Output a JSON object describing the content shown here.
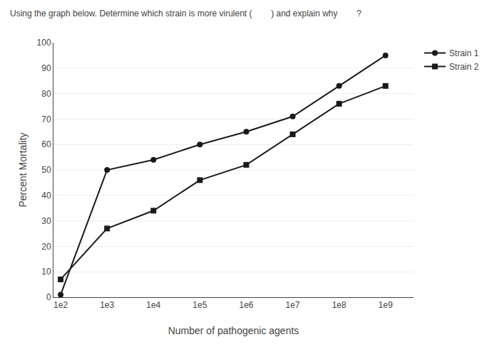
{
  "chart_data": {
    "type": "line",
    "title": "Using the graph below. Determine which strain is more virulent (        ) and explain why        ?",
    "x_label": "Number of pathogenic agents",
    "y_label": "Percent Mortality",
    "x": [
      100,
      1000,
      10000,
      100000,
      1000000,
      10000000,
      100000000,
      1000000000
    ],
    "series": [
      {
        "name": "Strain 1",
        "color": "#1a1a1a",
        "marker": "circle",
        "values": [
          1,
          50,
          54,
          60,
          65,
          71,
          83,
          95
        ]
      },
      {
        "name": "Strain 2",
        "color": "#1a1a1a",
        "marker": "square",
        "values": [
          7,
          27,
          34,
          46,
          52,
          64,
          76,
          83
        ]
      }
    ],
    "log": "x",
    "xlim": [
      70,
      4000000000
    ],
    "xticks": [
      {
        "value": 100,
        "label": "1e2"
      },
      {
        "value": 1000,
        "label": "1e3"
      },
      {
        "value": 10000,
        "label": "1e4"
      },
      {
        "value": 100000,
        "label": "1e5"
      },
      {
        "value": 1000000,
        "label": "1e6"
      },
      {
        "value": 10000000,
        "label": "1e7"
      },
      {
        "value": 100000000,
        "label": "1e8"
      },
      {
        "value": 1000000000,
        "label": "1e9"
      }
    ],
    "ylim": [
      0,
      100
    ],
    "yticks": [
      0,
      10,
      20,
      30,
      40,
      50,
      60,
      70,
      80,
      90,
      100
    ],
    "grid": "y",
    "legend": "upper right"
  }
}
